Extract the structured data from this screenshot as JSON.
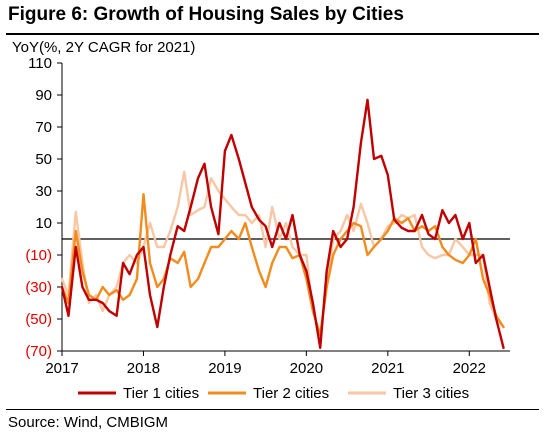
{
  "title": "Figure 6: Growth of Housing Sales by Cities",
  "source": "Source: Wind, CMBIGM",
  "colors": {
    "tier1": "#C00000",
    "tier2": "#F28C1E",
    "tier3": "#F7C7A6",
    "axis": "#000000",
    "negative_tick": "#E30000"
  },
  "chart_data": {
    "type": "line",
    "ylabel": "YoY(%, 2Y CAGR  for 2021)",
    "ylim": [
      -70,
      110
    ],
    "yticks": [
      110,
      90,
      70,
      50,
      30,
      10,
      -10,
      -30,
      -50,
      -70
    ],
    "ytick_labels": [
      "110",
      "90",
      "70",
      "50",
      "30",
      "10",
      "(10)",
      "(30)",
      "(50)",
      "(70)"
    ],
    "xlim": [
      2017.0,
      2022.5
    ],
    "xticks": [
      2017,
      2018,
      2019,
      2020,
      2021,
      2022
    ],
    "xtick_labels": [
      "2017",
      "2018",
      "2019",
      "2020",
      "2021",
      "2022"
    ],
    "baseline": 0,
    "legend_position": "bottom",
    "series": [
      {
        "name": "Tier 1 cities",
        "color": "#C00000",
        "x": [
          2017.0,
          2017.08,
          2017.17,
          2017.25,
          2017.33,
          2017.42,
          2017.5,
          2017.58,
          2017.67,
          2017.75,
          2017.83,
          2017.92,
          2018.0,
          2018.08,
          2018.17,
          2018.25,
          2018.33,
          2018.42,
          2018.5,
          2018.58,
          2018.67,
          2018.75,
          2018.83,
          2018.92,
          2019.0,
          2019.08,
          2019.17,
          2019.25,
          2019.33,
          2019.42,
          2019.5,
          2019.58,
          2019.67,
          2019.75,
          2019.83,
          2019.92,
          2020.0,
          2020.08,
          2020.17,
          2020.25,
          2020.33,
          2020.42,
          2020.5,
          2020.58,
          2020.67,
          2020.75,
          2020.83,
          2020.92,
          2021.0,
          2021.08,
          2021.17,
          2021.25,
          2021.33,
          2021.42,
          2021.5,
          2021.58,
          2021.67,
          2021.75,
          2021.83,
          2021.92,
          2022.0,
          2022.08,
          2022.17,
          2022.25,
          2022.33,
          2022.42
        ],
        "values": [
          -30,
          -48,
          -5,
          -30,
          -38,
          -38,
          -40,
          -45,
          -48,
          -15,
          -22,
          -10,
          -5,
          -35,
          -55,
          -30,
          -10,
          8,
          5,
          20,
          38,
          47,
          20,
          3,
          55,
          65,
          50,
          35,
          20,
          12,
          8,
          -5,
          10,
          0,
          15,
          -10,
          -20,
          -40,
          -68,
          -20,
          5,
          -5,
          0,
          20,
          60,
          87,
          50,
          52,
          40,
          12,
          7,
          5,
          5,
          15,
          3,
          0,
          18,
          10,
          15,
          0,
          10,
          -15,
          -10,
          -30,
          -50,
          -68
        ]
      },
      {
        "name": "Tier 2 cities",
        "color": "#F28C1E",
        "x": [
          2017.0,
          2017.08,
          2017.17,
          2017.25,
          2017.33,
          2017.42,
          2017.5,
          2017.58,
          2017.67,
          2017.75,
          2017.83,
          2017.92,
          2018.0,
          2018.08,
          2018.17,
          2018.25,
          2018.33,
          2018.42,
          2018.5,
          2018.58,
          2018.67,
          2018.75,
          2018.83,
          2018.92,
          2019.0,
          2019.08,
          2019.17,
          2019.25,
          2019.33,
          2019.42,
          2019.5,
          2019.58,
          2019.67,
          2019.75,
          2019.83,
          2019.92,
          2020.0,
          2020.08,
          2020.17,
          2020.25,
          2020.33,
          2020.42,
          2020.5,
          2020.58,
          2020.67,
          2020.75,
          2020.83,
          2020.92,
          2021.0,
          2021.08,
          2021.17,
          2021.25,
          2021.33,
          2021.42,
          2021.5,
          2021.58,
          2021.67,
          2021.75,
          2021.83,
          2021.92,
          2022.0,
          2022.08,
          2022.17,
          2022.25,
          2022.33,
          2022.42
        ],
        "values": [
          -30,
          -40,
          5,
          -20,
          -35,
          -38,
          -30,
          -35,
          -32,
          -38,
          -35,
          -25,
          28,
          -15,
          -30,
          -25,
          -12,
          -15,
          -8,
          -30,
          -25,
          -15,
          -5,
          -5,
          0,
          5,
          0,
          10,
          -5,
          -20,
          -30,
          -15,
          -5,
          -5,
          -12,
          -10,
          -25,
          -45,
          -60,
          -30,
          -10,
          0,
          5,
          10,
          8,
          -10,
          -5,
          0,
          5,
          13,
          10,
          13,
          5,
          8,
          5,
          8,
          -5,
          -10,
          -13,
          -15,
          -10,
          0,
          -25,
          -35,
          -48,
          -55
        ]
      },
      {
        "name": "Tier 3 cities",
        "color": "#F7C7A6",
        "x": [
          2017.0,
          2017.08,
          2017.17,
          2017.25,
          2017.33,
          2017.42,
          2017.5,
          2017.58,
          2017.67,
          2017.75,
          2017.83,
          2017.92,
          2018.0,
          2018.08,
          2018.17,
          2018.25,
          2018.33,
          2018.42,
          2018.5,
          2018.58,
          2018.67,
          2018.75,
          2018.83,
          2018.92,
          2019.0,
          2019.08,
          2019.17,
          2019.25,
          2019.33,
          2019.42,
          2019.5,
          2019.58,
          2019.67,
          2019.75,
          2019.83,
          2019.92,
          2020.0,
          2020.08,
          2020.17,
          2020.25,
          2020.33,
          2020.42,
          2020.5,
          2020.58,
          2020.67,
          2020.75,
          2020.83,
          2020.92,
          2021.0,
          2021.08,
          2021.17,
          2021.25,
          2021.33,
          2021.42,
          2021.5,
          2021.58,
          2021.67,
          2021.75,
          2021.83,
          2021.92,
          2022.0,
          2022.08,
          2022.17,
          2022.25,
          2022.33,
          2022.42
        ],
        "values": [
          -25,
          -35,
          17,
          -15,
          -40,
          -35,
          -45,
          -35,
          -30,
          -15,
          -10,
          -15,
          -5,
          10,
          -5,
          -5,
          5,
          20,
          42,
          15,
          18,
          20,
          38,
          30,
          25,
          20,
          15,
          15,
          10,
          15,
          -5,
          20,
          0,
          10,
          -5,
          -10,
          -10,
          -45,
          -60,
          -30,
          0,
          5,
          15,
          5,
          22,
          10,
          -5,
          0,
          8,
          10,
          15,
          13,
          15,
          -5,
          -10,
          -12,
          -10,
          -10,
          0,
          -5,
          -10,
          -10,
          -10,
          -40,
          -50,
          -55
        ]
      }
    ]
  }
}
